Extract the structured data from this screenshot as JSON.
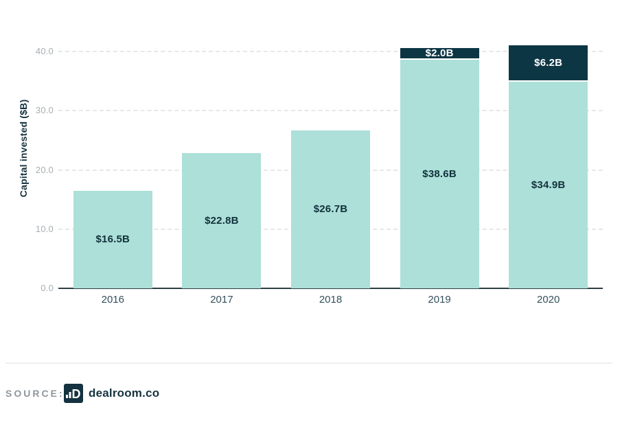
{
  "chart_data": {
    "type": "bar",
    "stacked": true,
    "title": "",
    "categories": [
      "2016",
      "2017",
      "2018",
      "2019",
      "2020"
    ],
    "series": [
      {
        "name": "bottom_segment",
        "color": "#ace0d8",
        "label_color": "#13313d",
        "values": [
          16.5,
          22.8,
          26.7,
          38.6,
          34.9
        ],
        "labels": [
          "$16.5B",
          "$22.8B",
          "$26.7B",
          "$38.6B",
          "$34.9B"
        ]
      },
      {
        "name": "top_segment",
        "color": "#0d3645",
        "label_color": "#ffffff",
        "values": [
          0,
          0,
          0,
          2.0,
          6.2
        ],
        "labels": [
          "",
          "",
          "",
          "$2.0B",
          "$6.2B"
        ]
      }
    ],
    "totals": [
      16.5,
      22.8,
      26.7,
      40.6,
      41.1
    ],
    "xlabel": "",
    "ylabel": "Capital invested ($B)",
    "ylim": [
      0,
      40
    ],
    "yticks": [
      {
        "value": 0,
        "label": "0.0"
      },
      {
        "value": 10,
        "label": "10.0"
      },
      {
        "value": 20,
        "label": "20.0"
      },
      {
        "value": 30,
        "label": "30.0"
      },
      {
        "value": 40,
        "label": "40.0"
      }
    ],
    "grid": "horizontal-dashed",
    "legend": "none"
  },
  "footer": {
    "source_label": "SOURCE:",
    "brand": "dealroom.co",
    "logo_letter": "D"
  },
  "colors": {
    "bar_teal": "#ace0d8",
    "bar_navy": "#0d3645",
    "axis_line": "#2e3d45",
    "gridline": "#e7e7e7",
    "ytick_text": "#a6aeb1",
    "xtick_text": "#33505c",
    "dark_label": "#13313d",
    "source_gray": "#8e979c",
    "brand_navy": "#16323e",
    "background": "#ffffff"
  }
}
